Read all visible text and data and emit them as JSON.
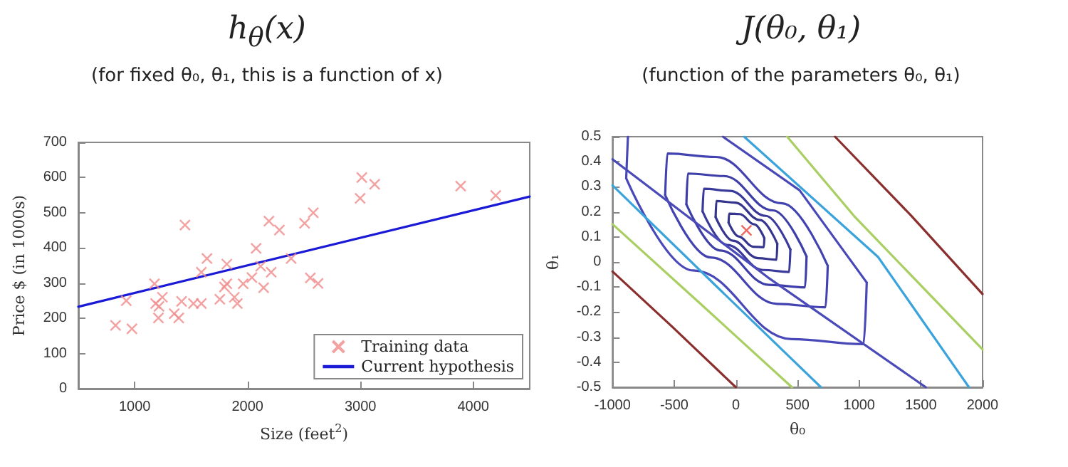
{
  "chart_data": [
    {
      "type": "scatter",
      "title": "h$_{θ}$(x)",
      "subtitle": "(for fixed θ₀, θ₁, this is a function of x)",
      "xlabel": "Size (feet$^{2}$)",
      "ylabel": "Price $ (in 1000s)",
      "xlim": [
        500,
        4500
      ],
      "xticks": [
        1000,
        2000,
        3000,
        4000
      ],
      "ylim": [
        0,
        700
      ],
      "yticks": [
        0,
        100,
        200,
        300,
        400,
        500,
        600,
        700
      ],
      "legend": "bottom right",
      "series": [
        {
          "name": "Training data",
          "marker": "cross",
          "color": "#f08a8a",
          "x": [
            830,
            975,
            925,
            1175,
            1185,
            1215,
            1210,
            1245,
            1350,
            1390,
            1415,
            1520,
            1590,
            1445,
            1640,
            1590,
            1816,
            1754,
            1795,
            1816,
            1883,
            1909,
            1961,
            2038,
            2075,
            2116,
            2142,
            2209,
            2189,
            2282,
            2505,
            2582,
            2386,
            2556,
            2624,
            2997,
            3012,
            3126,
            3888,
            4199
          ],
          "values": [
            180,
            170,
            250,
            298,
            242,
            234,
            201,
            260,
            213,
            201,
            248,
            242,
            242,
            465,
            370,
            331,
            354,
            254,
            289,
            298,
            260,
            242,
            298,
            316,
            399,
            348,
            287,
            331,
            476,
            451,
            470,
            500,
            370,
            315,
            299,
            541,
            600,
            581,
            576,
            549
          ]
        },
        {
          "name": "Current hypothesis",
          "type": "line",
          "marker": "none",
          "line_style": "solid",
          "color": "#1a1ad6",
          "x": [
            500,
            4500
          ],
          "values": [
            233,
            546
          ]
        }
      ]
    },
    {
      "type": "line",
      "title": "J(θ₀, θ₁)",
      "subtitle": "(function of the parameters θ₀, θ₁)",
      "xlabel": "θ₀",
      "ylabel": "θ₁",
      "xlim": [
        -1000,
        2000
      ],
      "xticks": [
        -1000,
        -500,
        0,
        500,
        1000,
        1500,
        2000
      ],
      "ylim": [
        -0.5,
        0.5
      ],
      "yticks": [
        -0.5,
        -0.4,
        -0.3,
        -0.2,
        -0.1,
        0,
        0.1,
        0.2,
        0.3,
        0.4,
        0.5
      ],
      "series": [
        {
          "color": "#35358f",
          "x": [
            -59,
            -55,
            32,
            150,
            231
          ],
          "values": [
            0.157,
            0.193,
            0.191,
            0.15,
            0.095
          ]
        },
        {
          "color": "#35358f",
          "x": [
            -59,
            22,
            140,
            227,
            231
          ],
          "values": [
            0.157,
            0.102,
            0.061,
            0.059,
            0.095
          ]
        },
        {
          "color": "#35358f",
          "x": [
            -164,
            -158,
            -8,
            197,
            336
          ],
          "values": [
            0.179,
            0.243,
            0.237,
            0.167,
            0.073
          ]
        },
        {
          "color": "#35358f",
          "x": [
            -164,
            -25,
            180,
            330,
            336
          ],
          "values": [
            0.179,
            0.085,
            0.015,
            0.009,
            0.073
          ]
        },
        {
          "color": "#3a3a9c",
          "x": [
            -270,
            -260,
            -48,
            243,
            442
          ],
          "values": [
            0.202,
            0.292,
            0.284,
            0.184,
            0.05
          ]
        },
        {
          "color": "#3a3a9c",
          "x": [
            -270,
            -71,
            220,
            432,
            442
          ],
          "values": [
            0.202,
            0.068,
            -0.032,
            -0.04,
            0.05
          ]
        },
        {
          "color": "#3e3ea8",
          "x": [
            -401,
            -389,
            -97,
            301,
            573
          ],
          "values": [
            0.23,
            0.353,
            0.343,
            0.206,
            0.022
          ]
        },
        {
          "color": "#3e3ea8",
          "x": [
            -401,
            -129,
            269,
            561,
            573
          ],
          "values": [
            0.23,
            0.046,
            -0.091,
            -0.101,
            0.022
          ]
        },
        {
          "color": "#4242b0",
          "x": [
            -573,
            -555,
            -161,
            377,
            745
          ],
          "values": [
            0.267,
            0.433,
            0.419,
            0.234,
            -0.015
          ]
        },
        {
          "color": "#4242b0",
          "x": [
            -573,
            -205,
            333,
            727,
            745
          ],
          "values": [
            0.267,
            0.018,
            -0.167,
            -0.181,
            -0.015
          ]
        },
        {
          "color": "#4848b8",
          "x": [
            -889,
            -875
          ],
          "values": [
            0.334,
            0.5
          ]
        },
        {
          "color": "#4848b8",
          "x": [
            -889,
            -345,
            452,
            1035,
            1061
          ],
          "values": [
            0.334,
            -0.034,
            -0.308,
            -0.328,
            -0.082
          ]
        },
        {
          "color": "#4848b8",
          "x": [
            -105,
            517,
            1061
          ],
          "values": [
            0.5,
            0.286,
            -0.082
          ]
        },
        {
          "color": "#4a4ab8",
          "x": [
            -1000,
            261,
            1540
          ],
          "values": [
            0.41,
            -0.062,
            -0.5
          ]
        },
        {
          "color": "#3ba3dc",
          "x": [
            -1000,
            -166,
            690
          ],
          "values": [
            0.306,
            -0.093,
            -0.5
          ]
        },
        {
          "color": "#3ba3dc",
          "x": [
            67,
            1153,
            1890
          ],
          "values": [
            0.5,
            0.02,
            -0.5
          ]
        },
        {
          "color": "#a9cf62",
          "x": [
            -1000,
            -282,
            455
          ],
          "values": [
            0.151,
            -0.169,
            -0.5
          ]
        },
        {
          "color": "#a9cf62",
          "x": [
            416,
            959,
            2000
          ],
          "values": [
            0.5,
            0.183,
            -0.349
          ]
        },
        {
          "color": "#8b2e2e",
          "x": [
            -1000,
            -515,
            0
          ],
          "values": [
            -0.038,
            -0.259,
            -0.5
          ]
        },
        {
          "color": "#8b2e2e",
          "x": [
            804,
            1425,
            2000
          ],
          "values": [
            0.5,
            0.183,
            -0.128
          ]
        },
        {
          "type": "scatter",
          "marker": "cross",
          "color": "#e8423a",
          "x": [
            86
          ],
          "values": [
            0.126
          ]
        }
      ]
    }
  ]
}
